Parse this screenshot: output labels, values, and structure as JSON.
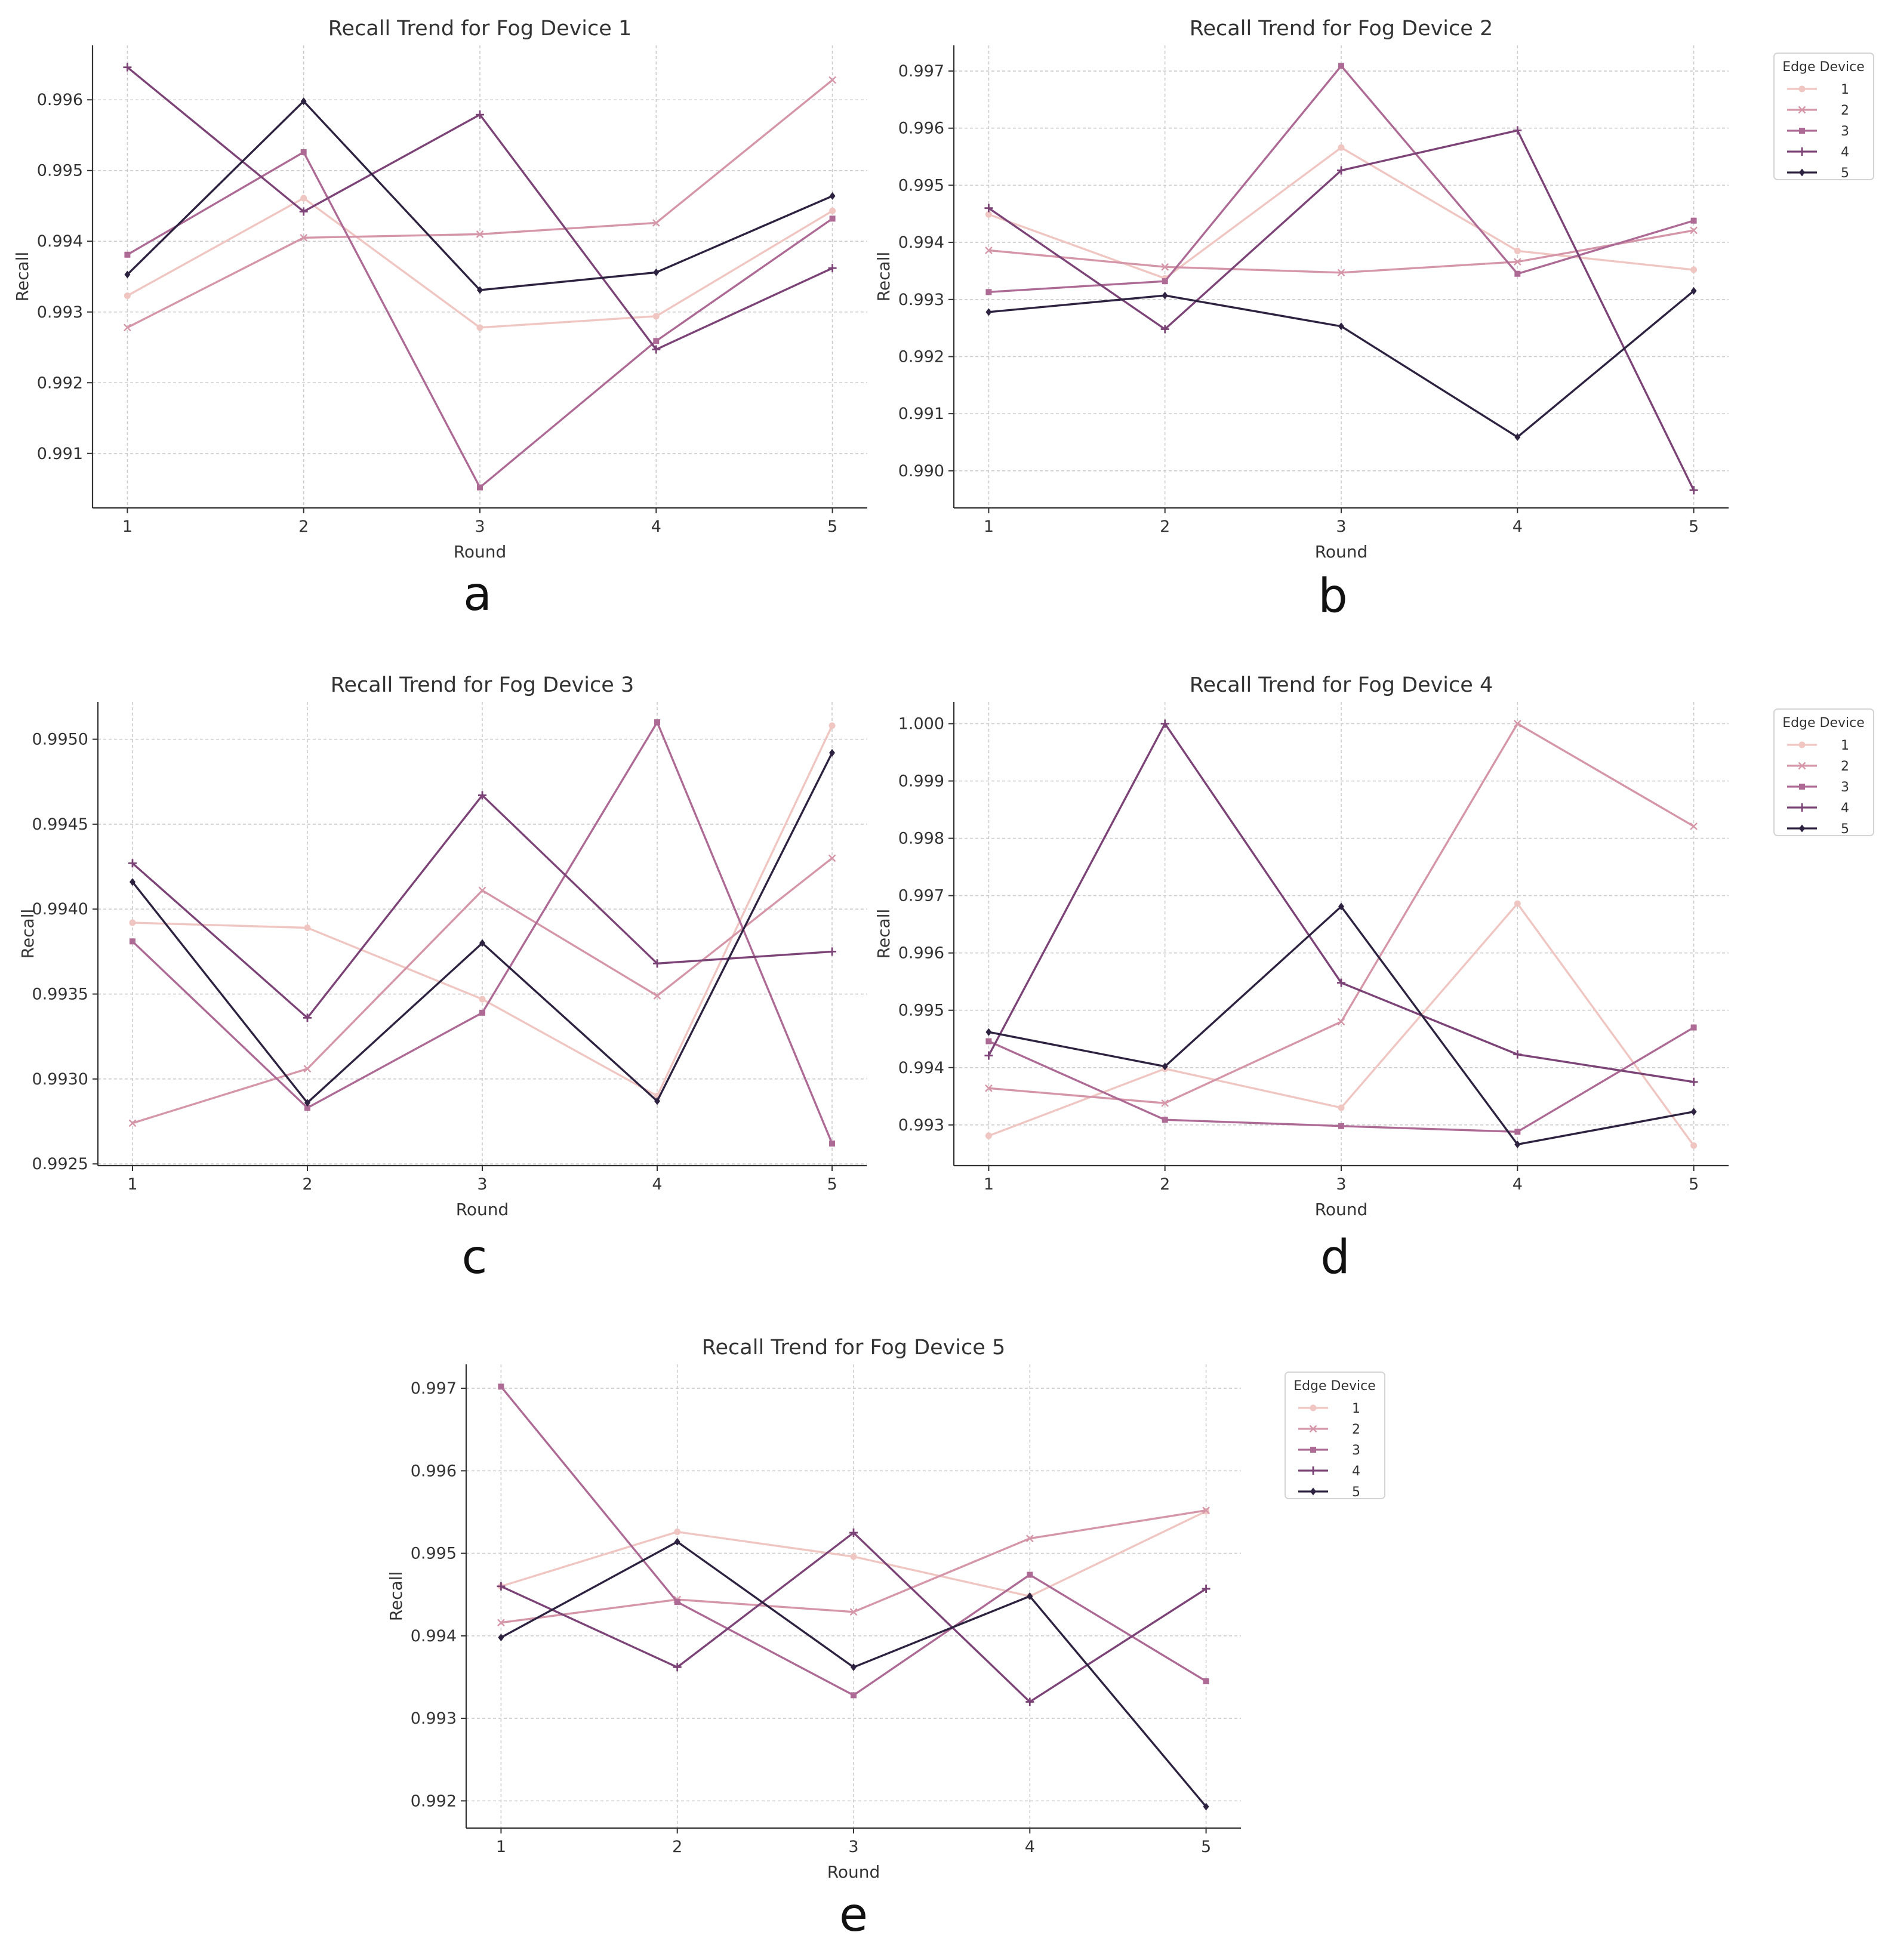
{
  "colors": {
    "series": [
      "#efc6c2",
      "#d496a8",
      "#ad6a94",
      "#7c4377",
      "#2d2240"
    ],
    "text": "#333333",
    "grid": "#cccccc",
    "axis": "#333333"
  },
  "legend_title": "Edge Device",
  "chart_data": [
    {
      "panel_label": "a",
      "type": "line",
      "title": "Recall Trend for Fog Device 1",
      "xlabel": "Round",
      "ylabel": "Recall",
      "x": [
        1,
        2,
        3,
        4,
        5
      ],
      "xticks": [
        "1",
        "2",
        "3",
        "4",
        "5"
      ],
      "ylim": [
        0.99023,
        0.99677
      ],
      "yticks": [
        0.991,
        0.992,
        0.993,
        0.994,
        0.995,
        0.996
      ],
      "ytick_labels": [
        "0.991",
        "0.992",
        "0.993",
        "0.994",
        "0.995",
        "0.996"
      ],
      "grid": true,
      "legend": false,
      "series": [
        {
          "name": "1",
          "marker": "circle",
          "values": [
            0.99323,
            0.99461,
            0.99278,
            0.99294,
            0.99443
          ]
        },
        {
          "name": "2",
          "marker": "x",
          "values": [
            0.99278,
            0.99405,
            0.9941,
            0.99426,
            0.99628
          ]
        },
        {
          "name": "3",
          "marker": "square",
          "values": [
            0.99381,
            0.99526,
            0.99052,
            0.99259,
            0.99432
          ]
        },
        {
          "name": "4",
          "marker": "plus",
          "values": [
            0.99646,
            0.99442,
            0.99579,
            0.99247,
            0.99362
          ]
        },
        {
          "name": "5",
          "marker": "diamond",
          "values": [
            0.99353,
            0.99598,
            0.99331,
            0.99356,
            0.99464
          ]
        }
      ]
    },
    {
      "panel_label": "b",
      "type": "line",
      "title": "Recall Trend for Fog Device 2",
      "xlabel": "Round",
      "ylabel": "Recall",
      "x": [
        1,
        2,
        3,
        4,
        5
      ],
      "xticks": [
        "1",
        "2",
        "3",
        "4",
        "5"
      ],
      "ylim": [
        0.98935,
        0.99745
      ],
      "yticks": [
        0.99,
        0.991,
        0.992,
        0.993,
        0.994,
        0.995,
        0.996,
        0.997
      ],
      "ytick_labels": [
        "0.990",
        "0.991",
        "0.992",
        "0.993",
        "0.994",
        "0.995",
        "0.996",
        "0.997"
      ],
      "grid": true,
      "legend": true,
      "series": [
        {
          "name": "1",
          "marker": "circle",
          "values": [
            0.99449,
            0.99337,
            0.99566,
            0.99385,
            0.99352
          ]
        },
        {
          "name": "2",
          "marker": "x",
          "values": [
            0.99386,
            0.99357,
            0.99347,
            0.99366,
            0.99421
          ]
        },
        {
          "name": "3",
          "marker": "square",
          "values": [
            0.99313,
            0.99332,
            0.99709,
            0.99345,
            0.99438
          ]
        },
        {
          "name": "4",
          "marker": "plus",
          "values": [
            0.9946,
            0.99248,
            0.99526,
            0.99596,
            0.98966
          ]
        },
        {
          "name": "5",
          "marker": "diamond",
          "values": [
            0.99278,
            0.99307,
            0.99253,
            0.99059,
            0.99315
          ]
        }
      ]
    },
    {
      "panel_label": "c",
      "type": "line",
      "title": "Recall Trend for Fog Device 3",
      "xlabel": "Round",
      "ylabel": "Recall",
      "x": [
        1,
        2,
        3,
        4,
        5
      ],
      "xticks": [
        "1",
        "2",
        "3",
        "4",
        "5"
      ],
      "ylim": [
        0.99249,
        0.99522
      ],
      "yticks": [
        0.9925,
        0.993,
        0.9935,
        0.994,
        0.9945,
        0.995
      ],
      "ytick_labels": [
        "0.9925",
        "0.9930",
        "0.9935",
        "0.9940",
        "0.9945",
        "0.9950"
      ],
      "grid": true,
      "legend": false,
      "series": [
        {
          "name": "1",
          "marker": "circle",
          "values": [
            0.99392,
            0.99389,
            0.99347,
            0.9929,
            0.99508
          ]
        },
        {
          "name": "2",
          "marker": "x",
          "values": [
            0.99274,
            0.99306,
            0.99411,
            0.99349,
            0.9943
          ]
        },
        {
          "name": "3",
          "marker": "square",
          "values": [
            0.99381,
            0.99283,
            0.99339,
            0.9951,
            0.99262
          ]
        },
        {
          "name": "4",
          "marker": "plus",
          "values": [
            0.99427,
            0.99336,
            0.99467,
            0.99368,
            0.99375
          ]
        },
        {
          "name": "5",
          "marker": "diamond",
          "values": [
            0.99416,
            0.99286,
            0.9938,
            0.99287,
            0.99492
          ]
        }
      ]
    },
    {
      "panel_label": "d",
      "type": "line",
      "title": "Recall Trend for Fog Device 4",
      "xlabel": "Round",
      "ylabel": "Recall",
      "x": [
        1,
        2,
        3,
        4,
        5
      ],
      "xticks": [
        "1",
        "2",
        "3",
        "4",
        "5"
      ],
      "ylim": [
        0.99229,
        1.00038
      ],
      "yticks": [
        0.993,
        0.994,
        0.995,
        0.996,
        0.997,
        0.998,
        0.999,
        1.0
      ],
      "ytick_labels": [
        "0.993",
        "0.994",
        "0.995",
        "0.996",
        "0.997",
        "0.998",
        "0.999",
        "1.000"
      ],
      "grid": true,
      "legend": true,
      "series": [
        {
          "name": "1",
          "marker": "circle",
          "values": [
            0.99281,
            0.99398,
            0.9933,
            0.99686,
            0.99264
          ]
        },
        {
          "name": "2",
          "marker": "x",
          "values": [
            0.99364,
            0.99338,
            0.9948,
            1.0,
            0.99821
          ]
        },
        {
          "name": "3",
          "marker": "square",
          "values": [
            0.99446,
            0.99309,
            0.99298,
            0.99288,
            0.9947
          ]
        },
        {
          "name": "4",
          "marker": "plus",
          "values": [
            0.99421,
            1.0,
            0.99548,
            0.99423,
            0.99375
          ]
        },
        {
          "name": "5",
          "marker": "diamond",
          "values": [
            0.99462,
            0.99402,
            0.99681,
            0.99266,
            0.99323
          ]
        }
      ]
    },
    {
      "panel_label": "e",
      "type": "line",
      "title": "Recall Trend for Fog Device 5",
      "xlabel": "Round",
      "ylabel": "Recall",
      "x": [
        1,
        2,
        3,
        4,
        5
      ],
      "xticks": [
        "1",
        "2",
        "3",
        "4",
        "5"
      ],
      "ylim": [
        0.99167,
        0.99729
      ],
      "yticks": [
        0.992,
        0.993,
        0.994,
        0.995,
        0.996,
        0.997
      ],
      "ytick_labels": [
        "0.992",
        "0.993",
        "0.994",
        "0.995",
        "0.996",
        "0.997"
      ],
      "grid": true,
      "legend": true,
      "series": [
        {
          "name": "1",
          "marker": "circle",
          "values": [
            0.9946,
            0.99526,
            0.99496,
            0.99448,
            0.99551
          ]
        },
        {
          "name": "2",
          "marker": "x",
          "values": [
            0.99416,
            0.99444,
            0.99429,
            0.99518,
            0.99552
          ]
        },
        {
          "name": "3",
          "marker": "square",
          "values": [
            0.99702,
            0.99441,
            0.99328,
            0.99474,
            0.99345
          ]
        },
        {
          "name": "4",
          "marker": "plus",
          "values": [
            0.9946,
            0.99362,
            0.99525,
            0.9932,
            0.99457
          ]
        },
        {
          "name": "5",
          "marker": "diamond",
          "values": [
            0.99398,
            0.99514,
            0.99362,
            0.99448,
            0.99193
          ]
        }
      ]
    }
  ]
}
